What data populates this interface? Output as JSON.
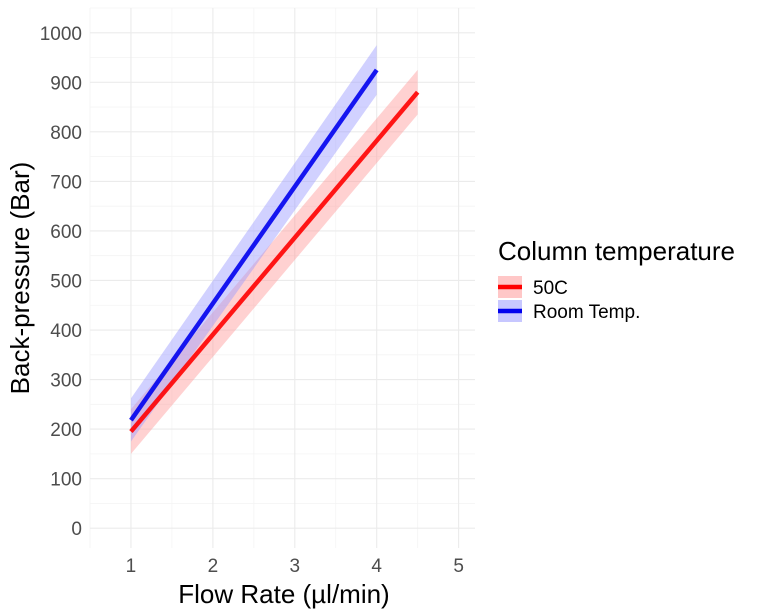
{
  "chart_data": {
    "type": "line",
    "xlabel": "Flow Rate (µl/min)",
    "ylabel": "Back-pressure (Bar)",
    "xlim": [
      0.5,
      5.2
    ],
    "ylim": [
      -40,
      1050
    ],
    "x_ticks": [
      1,
      2,
      3,
      4,
      5
    ],
    "x_tick_labels": [
      "1",
      "2",
      "3",
      "4",
      "5"
    ],
    "y_ticks": [
      0,
      100,
      200,
      300,
      400,
      500,
      600,
      700,
      800,
      900,
      1000
    ],
    "y_tick_labels": [
      "0",
      "100",
      "200",
      "300",
      "400",
      "500",
      "600",
      "700",
      "800",
      "900",
      "1000"
    ],
    "grid": true,
    "legend": {
      "title": "Column temperature",
      "placement": "right"
    },
    "series": [
      {
        "name": "50C",
        "color": "#ff0000",
        "band_color": "#ff9999",
        "x": [
          1,
          4.5
        ],
        "y": [
          195,
          880
        ],
        "lower": [
          150,
          835
        ],
        "upper": [
          240,
          925
        ]
      },
      {
        "name": "Room Temp.",
        "color": "#0000ee",
        "band_color": "#9999ff",
        "x": [
          1,
          4
        ],
        "y": [
          218,
          925
        ],
        "lower": [
          175,
          875
        ],
        "upper": [
          262,
          975
        ]
      }
    ]
  }
}
